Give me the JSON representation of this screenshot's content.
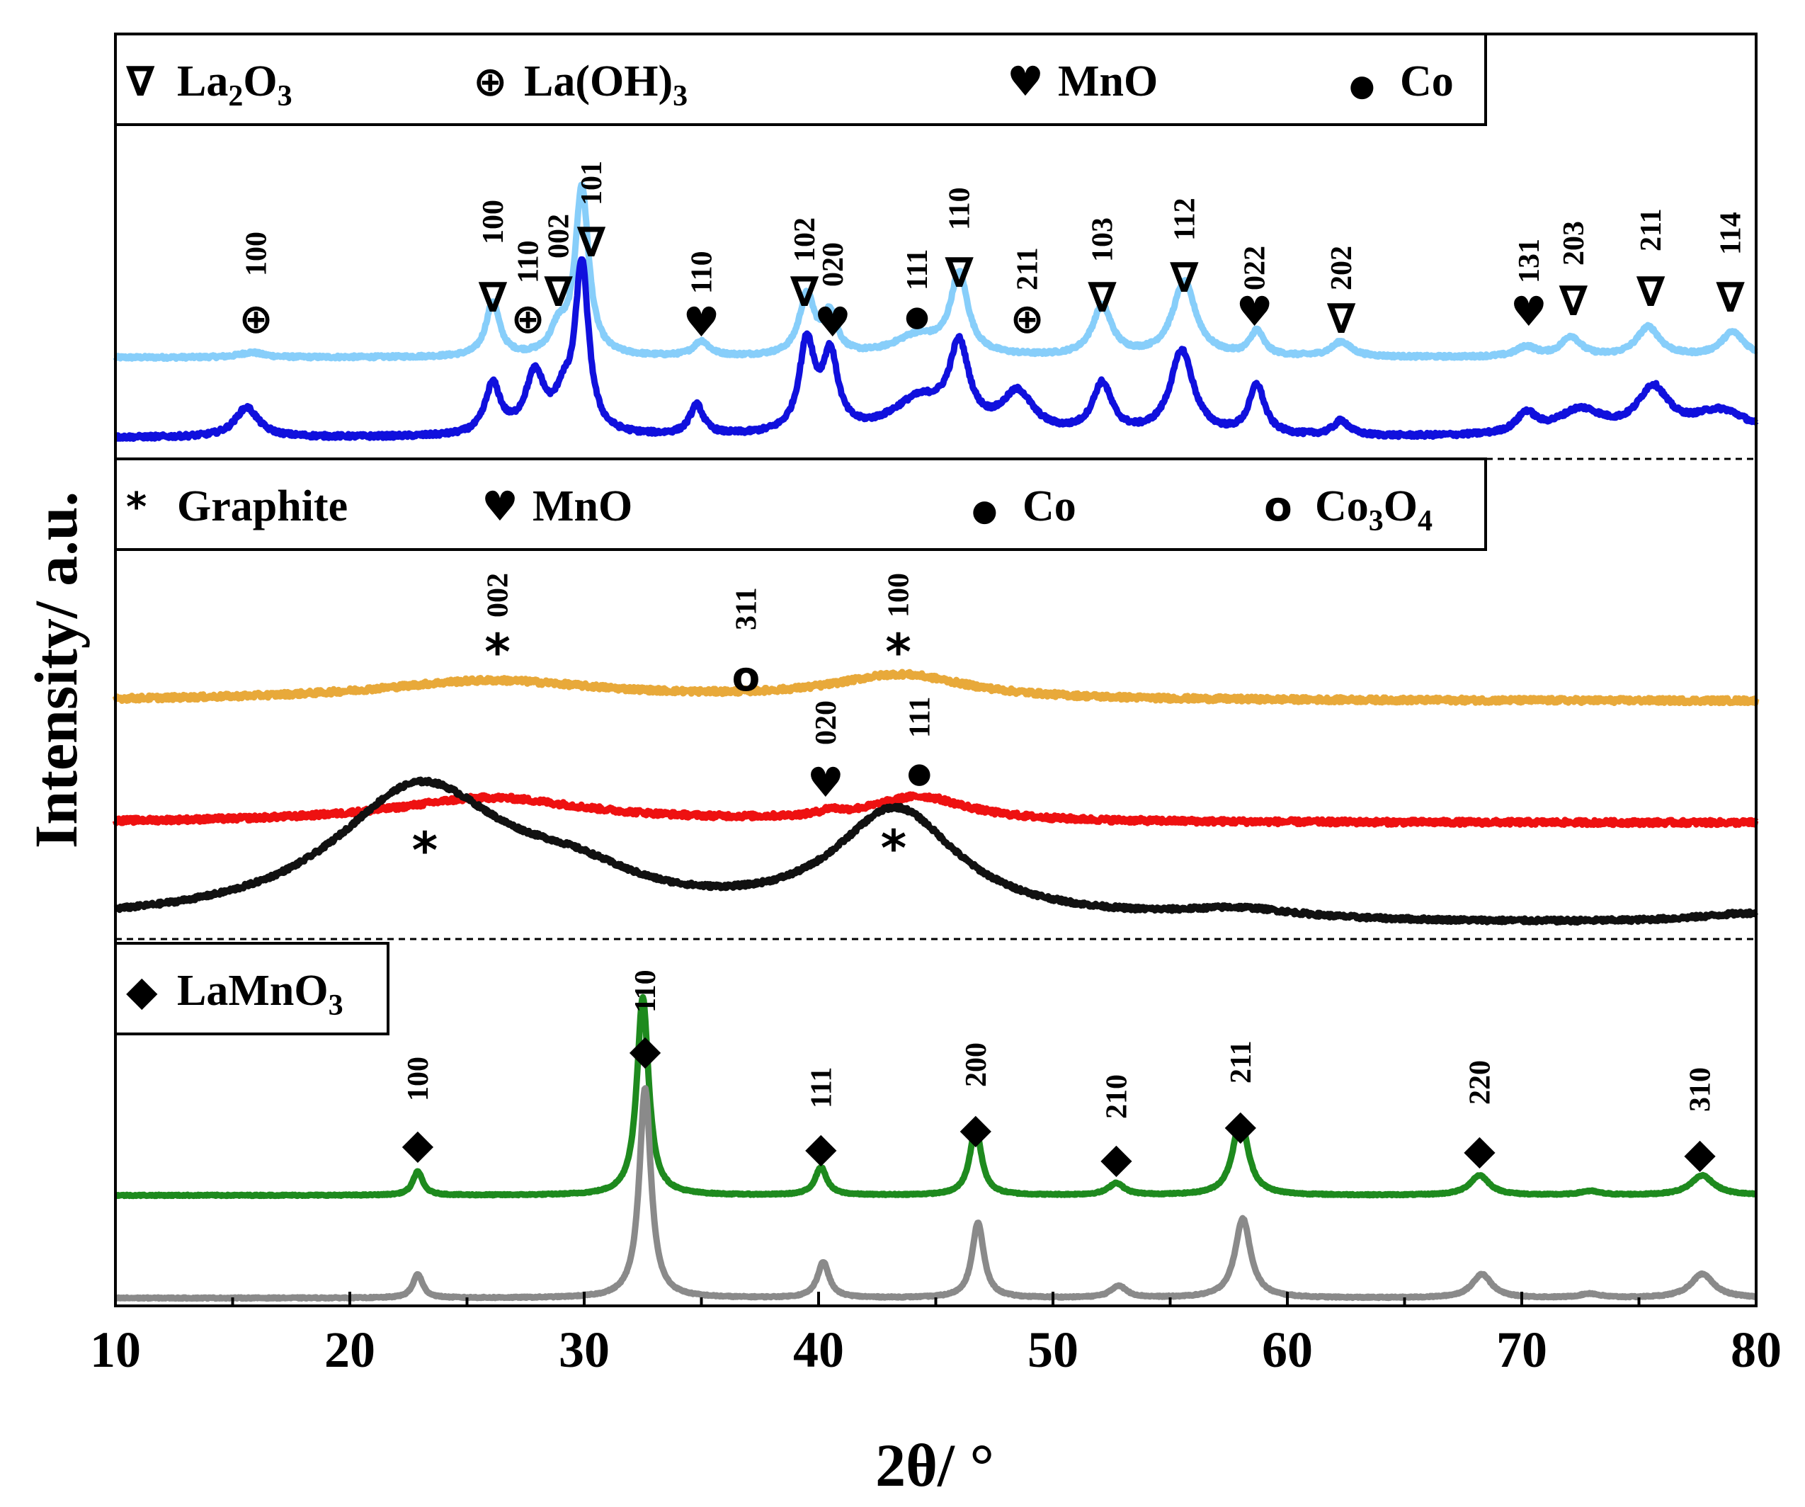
{
  "chart_data": {
    "type": "line",
    "xlabel": "2θ/ °",
    "ylabel": "Intensity/ a.u.",
    "xlim": [
      10,
      80
    ],
    "xticks": [
      "10",
      "20",
      "30",
      "40",
      "50",
      "60",
      "70",
      "80"
    ],
    "panels": [
      {
        "name": "top",
        "legend": [
          {
            "symbol": "∇",
            "label": "La",
            "sub1": "2",
            "label2": "O",
            "sub2": "3"
          },
          {
            "symbol": "⊕",
            "label": "La(OH)",
            "sub1": "3",
            "label2": "",
            "sub2": ""
          },
          {
            "symbol": "♥",
            "label": "MnO",
            "sub1": "",
            "label2": "",
            "sub2": ""
          },
          {
            "symbol": "●",
            "label": "Co",
            "sub1": "",
            "label2": "",
            "sub2": ""
          }
        ],
        "series": [
          {
            "name": "light-blue",
            "color": "#87CEFA",
            "baseline": 0.0,
            "noise": 0.006,
            "peaks": [
              [
                15.8,
                0.01,
                0.6
              ],
              [
                26.1,
                0.11,
                0.35
              ],
              [
                28.9,
                0.05,
                0.4
              ],
              [
                29.9,
                0.34,
                0.35
              ],
              [
                35.0,
                0.03,
                0.4
              ],
              [
                39.5,
                0.12,
                0.4
              ],
              [
                40.5,
                0.08,
                0.35
              ],
              [
                44.2,
                0.04,
                1.2
              ],
              [
                46.0,
                0.16,
                0.45
              ],
              [
                52.1,
                0.1,
                0.5
              ],
              [
                55.6,
                0.15,
                0.6
              ],
              [
                58.7,
                0.05,
                0.35
              ],
              [
                62.3,
                0.03,
                0.5
              ],
              [
                70.2,
                0.02,
                0.5
              ],
              [
                72.1,
                0.04,
                0.5
              ],
              [
                75.4,
                0.06,
                0.6
              ],
              [
                79.0,
                0.05,
                0.6
              ]
            ]
          },
          {
            "name": "blue",
            "color": "#1010DD",
            "baseline": 0.0,
            "noise": 0.008,
            "peaks": [
              [
                15.6,
                0.06,
                0.6
              ],
              [
                26.1,
                0.1,
                0.4
              ],
              [
                27.9,
                0.12,
                0.5
              ],
              [
                29.1,
                0.06,
                0.4
              ],
              [
                29.9,
                0.34,
                0.35
              ],
              [
                34.8,
                0.06,
                0.35
              ],
              [
                39.5,
                0.18,
                0.4
              ],
              [
                40.5,
                0.15,
                0.4
              ],
              [
                44.3,
                0.07,
                1.5
              ],
              [
                46.0,
                0.16,
                0.5
              ],
              [
                48.5,
                0.08,
                0.8
              ],
              [
                52.1,
                0.1,
                0.5
              ],
              [
                55.5,
                0.17,
                0.6
              ],
              [
                58.7,
                0.1,
                0.4
              ],
              [
                62.3,
                0.03,
                0.4
              ],
              [
                70.2,
                0.04,
                0.5
              ],
              [
                72.5,
                0.05,
                1.2
              ],
              [
                75.6,
                0.09,
                0.8
              ],
              [
                78.5,
                0.05,
                1.5
              ]
            ]
          }
        ],
        "annotations": [
          {
            "x": 16.0,
            "symbol": "⊕",
            "hkl": "100"
          },
          {
            "x": 26.1,
            "symbol": "∇",
            "hkl": "100"
          },
          {
            "x": 27.6,
            "symbol": "⊕",
            "hkl": "110"
          },
          {
            "x": 28.9,
            "symbol": "∇",
            "hkl": "002"
          },
          {
            "x": 30.3,
            "symbol": "∇",
            "hkl": "101"
          },
          {
            "x": 35.0,
            "symbol": "♥",
            "hkl": "110"
          },
          {
            "x": 39.4,
            "symbol": "∇",
            "hkl": "102"
          },
          {
            "x": 40.6,
            "symbol": "♥",
            "hkl": "020"
          },
          {
            "x": 44.2,
            "symbol": "●",
            "hkl": "111"
          },
          {
            "x": 46.0,
            "symbol": "∇",
            "hkl": "110"
          },
          {
            "x": 48.9,
            "symbol": "⊕",
            "hkl": "211"
          },
          {
            "x": 52.1,
            "symbol": "∇",
            "hkl": "103"
          },
          {
            "x": 55.6,
            "symbol": "∇",
            "hkl": "112"
          },
          {
            "x": 58.6,
            "symbol": "♥",
            "hkl": "022"
          },
          {
            "x": 62.3,
            "symbol": "∇",
            "hkl": "202"
          },
          {
            "x": 70.3,
            "symbol": "♥",
            "hkl": "131"
          },
          {
            "x": 72.2,
            "symbol": "∇",
            "hkl": "203"
          },
          {
            "x": 75.5,
            "symbol": "∇",
            "hkl": "211"
          },
          {
            "x": 78.9,
            "symbol": "∇",
            "hkl": "114"
          }
        ]
      },
      {
        "name": "middle",
        "legend": [
          {
            "symbol": "*",
            "label": "Graphite",
            "sub1": "",
            "label2": "",
            "sub2": ""
          },
          {
            "symbol": "♥",
            "label": "MnO",
            "sub1": "",
            "label2": "",
            "sub2": ""
          },
          {
            "symbol": "●",
            "label": "Co",
            "sub1": "",
            "label2": "",
            "sub2": ""
          },
          {
            "symbol": "o",
            "label": "Co",
            "sub1": "3",
            "label2": "O",
            "sub2": "4"
          }
        ],
        "series": [
          {
            "name": "orange",
            "color": "#E8A93A",
            "baseline": 0.0,
            "noise": 0.01,
            "peaks": [
              [
                26.0,
                0.04,
                6.0
              ],
              [
                43.5,
                0.05,
                3.5
              ]
            ]
          },
          {
            "name": "red",
            "color": "#EE1111",
            "baseline": 0.0,
            "noise": 0.01,
            "peaks": [
              [
                26.0,
                0.05,
                5.0
              ],
              [
                40.5,
                0.01,
                0.5
              ],
              [
                44.3,
                0.05,
                2.5
              ]
            ]
          },
          {
            "name": "black",
            "color": "#111111",
            "baseline": 0.0,
            "noise": 0.008,
            "peaks": [
              [
                23.0,
                0.27,
                4.5
              ],
              [
                29.5,
                0.06,
                3.5
              ],
              [
                43.3,
                0.22,
                3.2
              ],
              [
                58.0,
                0.02,
                3.0
              ],
              [
                80.0,
                0.02,
                3.0
              ]
            ]
          }
        ],
        "annotations": [
          {
            "x": 26.3,
            "symbol": "*",
            "hkl": "002"
          },
          {
            "x": 36.9,
            "symbol": "o",
            "hkl": "311"
          },
          {
            "x": 43.4,
            "symbol": "*",
            "hkl": "100"
          },
          {
            "x": 40.3,
            "symbol": "♥",
            "hkl": "020"
          },
          {
            "x": 44.3,
            "symbol": "●",
            "hkl": "111"
          },
          {
            "x": 23.2,
            "symbol": "*",
            "hkl": ""
          },
          {
            "x": 43.2,
            "symbol": "*",
            "hkl": ""
          }
        ]
      },
      {
        "name": "bottom",
        "legend": [
          {
            "symbol": "◆",
            "label": "LaMnO",
            "sub1": "3",
            "label2": "",
            "sub2": ""
          }
        ],
        "series": [
          {
            "name": "green",
            "color": "#1E8A1E",
            "baseline": 0.0,
            "noise": 0.003,
            "peaks": [
              [
                22.9,
                0.06,
                0.25
              ],
              [
                32.5,
                0.5,
                0.3
              ],
              [
                40.1,
                0.07,
                0.3
              ],
              [
                46.7,
                0.17,
                0.3
              ],
              [
                52.7,
                0.03,
                0.4
              ],
              [
                58.0,
                0.19,
                0.4
              ],
              [
                68.2,
                0.05,
                0.5
              ],
              [
                72.9,
                0.01,
                0.5
              ],
              [
                77.7,
                0.05,
                0.6
              ]
            ]
          },
          {
            "name": "gray",
            "color": "#8A8A8A",
            "baseline": 0.0,
            "noise": 0.003,
            "peaks": [
              [
                22.9,
                0.06,
                0.25
              ],
              [
                32.6,
                0.53,
                0.3
              ],
              [
                40.2,
                0.09,
                0.3
              ],
              [
                46.8,
                0.19,
                0.3
              ],
              [
                52.8,
                0.03,
                0.4
              ],
              [
                58.1,
                0.2,
                0.4
              ],
              [
                68.3,
                0.06,
                0.5
              ],
              [
                72.9,
                0.01,
                0.5
              ],
              [
                77.7,
                0.06,
                0.6
              ]
            ]
          }
        ],
        "annotations": [
          {
            "x": 22.9,
            "symbol": "◆",
            "hkl": "100"
          },
          {
            "x": 32.6,
            "symbol": "◆",
            "hkl": "110"
          },
          {
            "x": 40.1,
            "symbol": "◆",
            "hkl": "111"
          },
          {
            "x": 46.7,
            "symbol": "◆",
            "hkl": "200"
          },
          {
            "x": 52.7,
            "symbol": "◆",
            "hkl": "210"
          },
          {
            "x": 58.0,
            "symbol": "◆",
            "hkl": "211"
          },
          {
            "x": 68.2,
            "symbol": "◆",
            "hkl": "220"
          },
          {
            "x": 77.6,
            "symbol": "◆",
            "hkl": "310"
          }
        ]
      }
    ]
  }
}
